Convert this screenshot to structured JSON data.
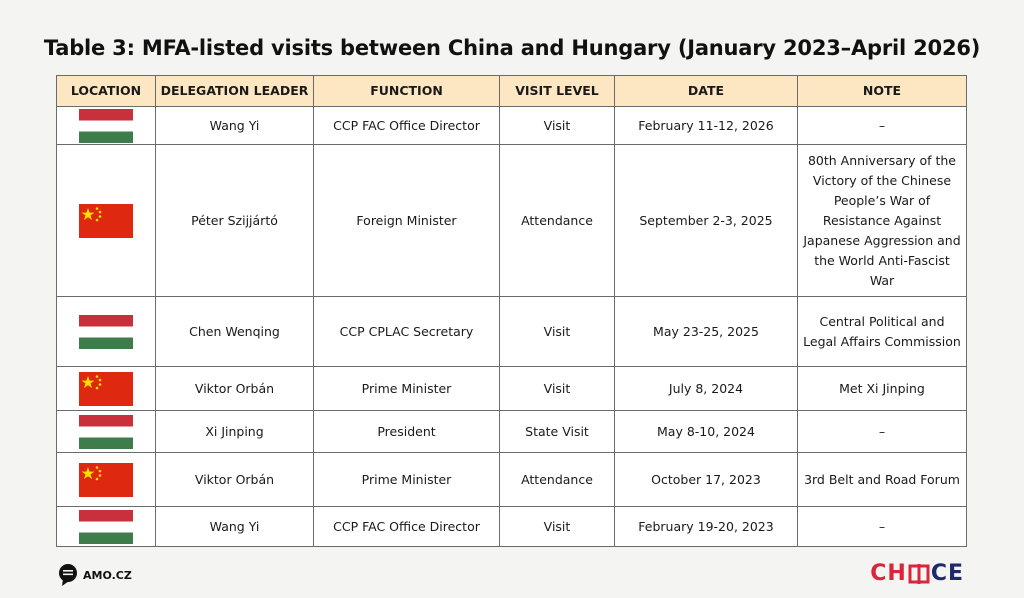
{
  "title": "Table 3: MFA-listed visits between China and Hungary (January 2023–April 2026)",
  "columns": [
    "LOCATION",
    "DELEGATION LEADER",
    "FUNCTION",
    "VISIT LEVEL",
    "DATE",
    "NOTE"
  ],
  "colors": {
    "header_bg": "#fde7c2",
    "hu_red": "#c8313b",
    "hu_green": "#3f7c4b",
    "cn_red": "#de2910",
    "cn_star": "#ffde00"
  },
  "rows": [
    {
      "location_flag": "hungary-flag-icon",
      "leader": "Wang Yi",
      "function": "CCP FAC Office Director",
      "level": "Visit",
      "date": "February 11-12, 2026",
      "note": "–"
    },
    {
      "location_flag": "china-flag-icon",
      "leader": "Péter Szijjártó",
      "function": "Foreign Minister",
      "level": "Attendance",
      "date": "September 2-3, 2025",
      "note": "80th Anniversary of the Victory of the Chinese People’s War of Resistance Against Japanese Aggression and the World Anti-Fascist War"
    },
    {
      "location_flag": "hungary-flag-icon",
      "leader": "Chen Wenqing",
      "function": "CCP CPLAC Secretary",
      "level": "Visit",
      "date": "May 23-25, 2025",
      "note": "Central Political and Legal Affairs Commission"
    },
    {
      "location_flag": "china-flag-icon",
      "leader": "Viktor Orbán",
      "function": "Prime Minister",
      "level": "Visit",
      "date": "July 8, 2024",
      "note": "Met Xi Jinping"
    },
    {
      "location_flag": "hungary-flag-icon",
      "leader": "Xi Jinping",
      "function": "President",
      "level": "State Visit",
      "date": "May 8-10, 2024",
      "note": "–"
    },
    {
      "location_flag": "china-flag-icon",
      "leader": "Viktor Orbán",
      "function": "Prime Minister",
      "level": "Attendance",
      "date": "October 17, 2023",
      "note": "3rd Belt and Road Forum"
    },
    {
      "location_flag": "hungary-flag-icon",
      "leader": "Wang Yi",
      "function": "CCP FAC Office Director",
      "level": "Visit",
      "date": "February 19-20, 2023",
      "note": "–"
    }
  ],
  "footer": {
    "left_logo_icon": "amo-speech-bubble-icon",
    "left_text": "AMO.CZ",
    "right_logo_pre": "CH",
    "right_logo_post": "CE",
    "right_logo_icon": "choice-o-mark-icon"
  }
}
